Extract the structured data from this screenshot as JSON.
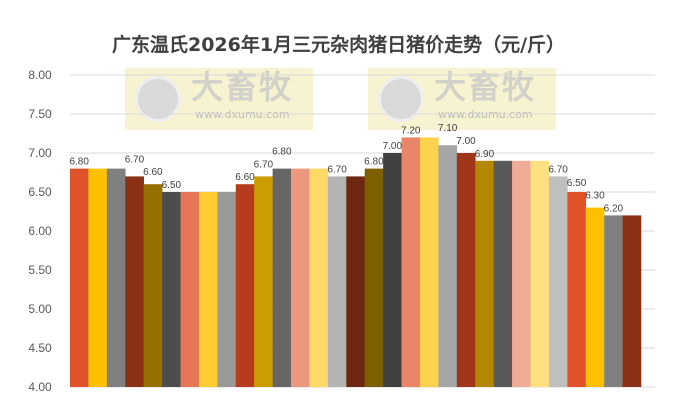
{
  "chart_data": {
    "type": "bar",
    "title": "广东温氏2026年1月三元杂肉猪日猪价走势（元/斤）",
    "xlabel": "",
    "ylabel": "",
    "ylim": [
      4.0,
      8.0
    ],
    "yticks": [
      "4.00",
      "4.50",
      "5.00",
      "5.50",
      "6.00",
      "6.50",
      "7.00",
      "7.50",
      "8.00"
    ],
    "grid": true,
    "values": [
      6.8,
      6.8,
      6.8,
      6.7,
      6.6,
      6.5,
      6.5,
      6.5,
      6.5,
      6.6,
      6.7,
      6.8,
      6.8,
      6.8,
      6.7,
      6.7,
      6.8,
      7.0,
      7.2,
      7.2,
      7.1,
      7.0,
      6.9,
      6.9,
      6.9,
      6.9,
      6.7,
      6.5,
      6.3,
      6.2,
      6.2
    ],
    "data_labels": [
      "6.80",
      null,
      null,
      "6.70",
      "6.60",
      "6.50",
      null,
      null,
      null,
      "6.60",
      "6.70",
      "6.80",
      null,
      null,
      "6.70",
      null,
      "6.80",
      "7.00",
      "7.20",
      null,
      "7.10",
      "7.00",
      "6.90",
      null,
      null,
      null,
      "6.70",
      "6.50",
      "6.30",
      "6.20",
      null
    ],
    "colors": [
      "#E0522A",
      "#FFC000",
      "#808080",
      "#8B3216",
      "#977100",
      "#4D4D4D",
      "#E57555",
      "#FFCD33",
      "#999999",
      "#B53D1D",
      "#CC9C00",
      "#666666",
      "#EB987E",
      "#FFD966",
      "#B3B3B3",
      "#6E2812",
      "#7F6000",
      "#404040",
      "#E9866A",
      "#FFD24D",
      "#A6A6A6",
      "#A13517",
      "#B38800",
      "#595959",
      "#EFAB96",
      "#FFE080",
      "#BFBFBF",
      "#E0522A",
      "#FFC000",
      "#808080",
      "#8B3216"
    ]
  },
  "watermark": {
    "brand": "大畜牧",
    "url": "www.dxumu.com"
  }
}
